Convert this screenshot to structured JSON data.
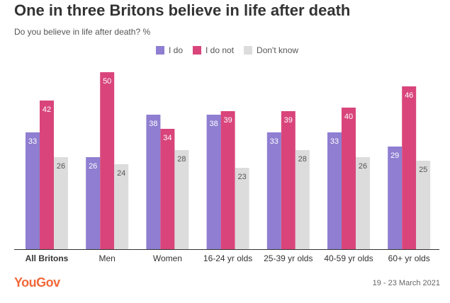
{
  "header": {
    "title": "One in three Britons believe in life after death",
    "subtitle": "Do you believe in life after death? %"
  },
  "footer": {
    "brand": "YouGov",
    "date_range": "19 - 23 March 2021"
  },
  "colors": {
    "i_do": "#8f7ed1",
    "i_do_not": "#d9457b",
    "dont_know": "#dcdcdc",
    "axis": "#333333",
    "brand": "#f2683a"
  },
  "chart_data": {
    "type": "bar",
    "title": "One in three Britons believe in life after death",
    "subtitle": "Do you believe in life after death? %",
    "categories": [
      "All Britons",
      "Men",
      "Women",
      "16-24 yr olds",
      "25-39 yr olds",
      "40-59 yr olds",
      "60+ yr olds"
    ],
    "series": [
      {
        "name": "I do",
        "color": "#8f7ed1",
        "values": [
          33,
          26,
          38,
          38,
          33,
          33,
          29
        ]
      },
      {
        "name": "I do not",
        "color": "#d9457b",
        "values": [
          42,
          50,
          34,
          39,
          39,
          40,
          46
        ]
      },
      {
        "name": "Don't know",
        "color": "#dcdcdc",
        "values": [
          26,
          24,
          28,
          23,
          28,
          26,
          25
        ]
      }
    ],
    "ylim": [
      0,
      50
    ],
    "legend": "top",
    "grid": false,
    "bold_categories": [
      "All Britons"
    ]
  }
}
